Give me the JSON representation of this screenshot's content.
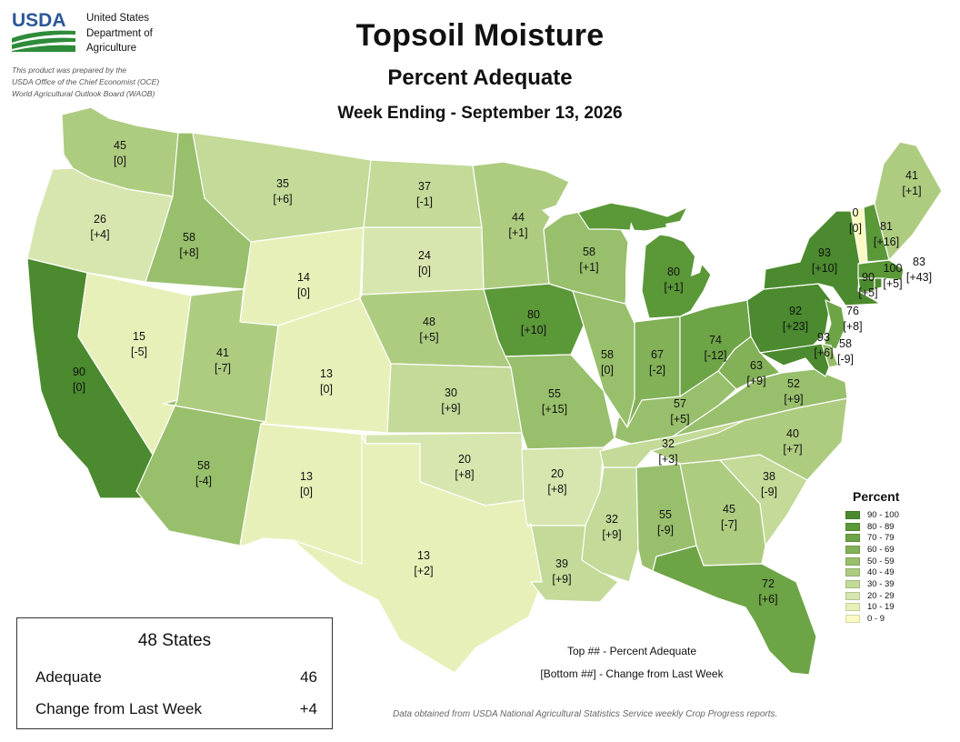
{
  "header": {
    "logo_text": "USDA",
    "agency_lines": [
      "United States",
      "Department of",
      "Agriculture"
    ],
    "credit_lines": [
      "This product was prepared by the",
      "USDA Office of the Chief Economist (OCE)",
      "World Agricultural Outlook Board (WAOB)"
    ],
    "title": "Topsoil Moisture",
    "subtitle": "Percent Adequate",
    "week": "Week Ending - September 13, 2026"
  },
  "legend": {
    "title": "Percent",
    "bins": [
      {
        "label": "90 - 100",
        "color": "#4b8a2e"
      },
      {
        "label": "80 - 89",
        "color": "#5b9838"
      },
      {
        "label": "70 - 79",
        "color": "#6da446"
      },
      {
        "label": "60 - 69",
        "color": "#82b157"
      },
      {
        "label": "50 - 59",
        "color": "#98bf6b"
      },
      {
        "label": "40 - 49",
        "color": "#aecc80"
      },
      {
        "label": "30 - 39",
        "color": "#c3da98"
      },
      {
        "label": "20 - 29",
        "color": "#d6e6ae"
      },
      {
        "label": "10 - 19",
        "color": "#e7f0b9"
      },
      {
        "label": "0 - 9",
        "color": "#fbfac2"
      }
    ]
  },
  "key": {
    "top": "Top ## - Percent Adequate",
    "bottom": "[Bottom ##] - Change from Last Week"
  },
  "summary": {
    "heading": "48 States",
    "adequate_label": "Adequate",
    "adequate_value": "46",
    "change_label": "Change from Last Week",
    "change_value": "+4"
  },
  "footnote": "Data obtained from USDA National Agricultural Statistics Service weekly Crop Progress reports.",
  "states": {
    "WA": {
      "value": 45,
      "change": "[0]"
    },
    "OR": {
      "value": 26,
      "change": "[+4]"
    },
    "CA": {
      "value": 90,
      "change": "[0]"
    },
    "NV": {
      "value": 15,
      "change": "[-5]"
    },
    "ID": {
      "value": 58,
      "change": "[+8]"
    },
    "MT": {
      "value": 35,
      "change": "[+6]"
    },
    "WY": {
      "value": 14,
      "change": "[0]"
    },
    "UT": {
      "value": 41,
      "change": "[-7]"
    },
    "CO": {
      "value": 13,
      "change": "[0]"
    },
    "AZ": {
      "value": 58,
      "change": "[-4]"
    },
    "NM": {
      "value": 13,
      "change": "[0]"
    },
    "ND": {
      "value": 37,
      "change": "[-1]"
    },
    "SD": {
      "value": 24,
      "change": "[0]"
    },
    "NE": {
      "value": 48,
      "change": "[+5]"
    },
    "KS": {
      "value": 30,
      "change": "[+9]"
    },
    "OK": {
      "value": 20,
      "change": "[+8]"
    },
    "TX": {
      "value": 13,
      "change": "[+2]"
    },
    "MN": {
      "value": 44,
      "change": "[+1]"
    },
    "IA": {
      "value": 80,
      "change": "[+10]"
    },
    "MO": {
      "value": 55,
      "change": "[+15]"
    },
    "AR": {
      "value": 20,
      "change": "[+8]"
    },
    "LA": {
      "value": 39,
      "change": "[+9]"
    },
    "WI": {
      "value": 58,
      "change": "[+1]"
    },
    "IL": {
      "value": 58,
      "change": "[0]"
    },
    "MI": {
      "value": 80,
      "change": "[+1]"
    },
    "IN": {
      "value": 67,
      "change": "[-2]"
    },
    "OH": {
      "value": 74,
      "change": "[-12]"
    },
    "KY": {
      "value": 57,
      "change": "[+5]"
    },
    "TN": {
      "value": 32,
      "change": "[+3]"
    },
    "MS": {
      "value": 32,
      "change": "[+9]"
    },
    "AL": {
      "value": 55,
      "change": "[-9]"
    },
    "GA": {
      "value": 45,
      "change": "[-7]"
    },
    "FL": {
      "value": 72,
      "change": "[+6]"
    },
    "SC": {
      "value": 38,
      "change": "[-9]"
    },
    "NC": {
      "value": 40,
      "change": "[+7]"
    },
    "VA": {
      "value": 52,
      "change": "[+9]"
    },
    "WV": {
      "value": 63,
      "change": "[+9]"
    },
    "PA": {
      "value": 92,
      "change": "[+23]"
    },
    "NY": {
      "value": 93,
      "change": "[+10]"
    },
    "NJ": {
      "value": 76,
      "change": "[+8]"
    },
    "DE": {
      "value": 58,
      "change": "[-9]"
    },
    "MD": {
      "value": 93,
      "change": "[+6]"
    },
    "CT": {
      "value": 90,
      "change": "[+5]"
    },
    "RI": {
      "value": 100,
      "change": "[+5]"
    },
    "MA": {
      "value": 83,
      "change": "[+43]"
    },
    "VT": {
      "value": 0,
      "change": "[0]"
    },
    "NH": {
      "value": 81,
      "change": "[+16]"
    },
    "ME": {
      "value": 41,
      "change": "[+1]"
    }
  }
}
